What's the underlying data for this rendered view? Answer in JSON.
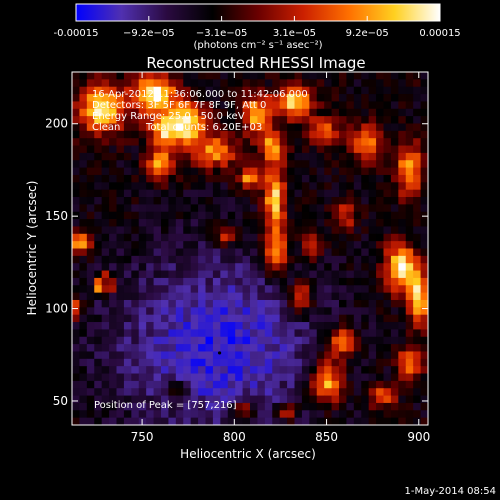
{
  "chart_data": {
    "type": "heatmap",
    "title": "Reconstructed RHESSI Image",
    "xlabel": "Heliocentric X (arcsec)",
    "ylabel": "Heliocentric Y (arcsec)",
    "x_ticks": [
      "750",
      "800",
      "850",
      "900"
    ],
    "y_ticks": [
      "50",
      "100",
      "150",
      "200"
    ],
    "xlim": [
      712,
      905
    ],
    "ylim": [
      37,
      228
    ],
    "colorbar": {
      "ticks": [
        "-0.00015",
        "−9.2e−05",
        "−3.1e−05",
        "3.1e−05",
        "9.2e−05",
        "0.00015"
      ],
      "range": [
        -0.00015,
        0.00015
      ],
      "unit_label": "(photons cm⁻² s⁻¹ asec⁻²)",
      "colors": [
        "#0000ff",
        "#5030b0",
        "#2a0a40",
        "#000000",
        "#6a0000",
        "#cc2000",
        "#ff7000",
        "#ffd020",
        "#ffffff"
      ]
    },
    "annotations": {
      "time_range": "16-Apr-2012 11:36:06.000 to 11:42:06.000",
      "detectors": "Detectors: 3F 5F 6F 7F 8F 9F, Att 0",
      "energy_range": "Energy Range: 25.0 - 50.0 keV",
      "algorithm": "Clean",
      "total_counts": "Total counts: 6.20E+03",
      "peak_position": "Position of Peak = [757,216]"
    },
    "peak": {
      "x": 757,
      "y": 216
    },
    "footer_date": "1-May-2014 08:54",
    "bright_sources": [
      {
        "x": 728,
        "y": 208,
        "sx": 9,
        "sy": 9,
        "v": 0.00013
      },
      {
        "x": 757,
        "y": 216,
        "sx": 8,
        "sy": 7,
        "v": 0.00015
      },
      {
        "x": 762,
        "y": 196,
        "sx": 6,
        "sy": 6,
        "v": 0.0001
      },
      {
        "x": 775,
        "y": 200,
        "sx": 7,
        "sy": 8,
        "v": 0.00013
      },
      {
        "x": 790,
        "y": 185,
        "sx": 8,
        "sy": 6,
        "v": 9e-05
      },
      {
        "x": 760,
        "y": 178,
        "sx": 5,
        "sy": 6,
        "v": 0.0001
      },
      {
        "x": 812,
        "y": 205,
        "sx": 6,
        "sy": 7,
        "v": 0.0001
      },
      {
        "x": 832,
        "y": 212,
        "sx": 7,
        "sy": 6,
        "v": 0.00012
      },
      {
        "x": 820,
        "y": 188,
        "sx": 5,
        "sy": 6,
        "v": 8e-05
      },
      {
        "x": 848,
        "y": 196,
        "sx": 6,
        "sy": 5,
        "v": 7e-05
      },
      {
        "x": 872,
        "y": 190,
        "sx": 6,
        "sy": 7,
        "v": 8e-05
      },
      {
        "x": 895,
        "y": 175,
        "sx": 5,
        "sy": 10,
        "v": 0.0001
      },
      {
        "x": 822,
        "y": 160,
        "sx": 4,
        "sy": 12,
        "v": 0.00013
      },
      {
        "x": 822,
        "y": 130,
        "sx": 5,
        "sy": 9,
        "v": 0.0001
      },
      {
        "x": 836,
        "y": 106,
        "sx": 4,
        "sy": 6,
        "v": 0.0001
      },
      {
        "x": 808,
        "y": 170,
        "sx": 4,
        "sy": 4,
        "v": 9e-05
      },
      {
        "x": 890,
        "y": 122,
        "sx": 6,
        "sy": 9,
        "v": 0.00014
      },
      {
        "x": 900,
        "y": 105,
        "sx": 4,
        "sy": 10,
        "v": 0.00012
      },
      {
        "x": 895,
        "y": 70,
        "sx": 5,
        "sy": 6,
        "v": 8e-05
      },
      {
        "x": 880,
        "y": 52,
        "sx": 5,
        "sy": 4,
        "v": 7e-05
      },
      {
        "x": 858,
        "y": 82,
        "sx": 5,
        "sy": 6,
        "v": 0.0001
      },
      {
        "x": 850,
        "y": 60,
        "sx": 6,
        "sy": 8,
        "v": 0.00012
      },
      {
        "x": 842,
        "y": 135,
        "sx": 4,
        "sy": 6,
        "v": 6e-05
      },
      {
        "x": 716,
        "y": 135,
        "sx": 4,
        "sy": 4,
        "v": 0.00011
      },
      {
        "x": 714,
        "y": 100,
        "sx": 3,
        "sy": 4,
        "v": 7e-05
      },
      {
        "x": 795,
        "y": 140,
        "sx": 4,
        "sy": 4,
        "v": 5e-05
      },
      {
        "x": 860,
        "y": 150,
        "sx": 4,
        "sy": 5,
        "v": 5e-05
      },
      {
        "x": 768,
        "y": 55,
        "sx": 4,
        "sy": 4,
        "v": 4e-05
      },
      {
        "x": 805,
        "y": 45,
        "sx": 4,
        "sy": 4,
        "v": 6e-05
      },
      {
        "x": 828,
        "y": 44,
        "sx": 4,
        "sy": 3,
        "v": 8e-05
      }
    ],
    "ring_sources": [
      {
        "x": 729,
        "y": 113,
        "r": 4,
        "w": 1.3,
        "v": 0.00011
      }
    ],
    "negative_region": {
      "x": 790,
      "y": 80,
      "sx": 40,
      "sy": 35,
      "v": -0.00014
    }
  }
}
